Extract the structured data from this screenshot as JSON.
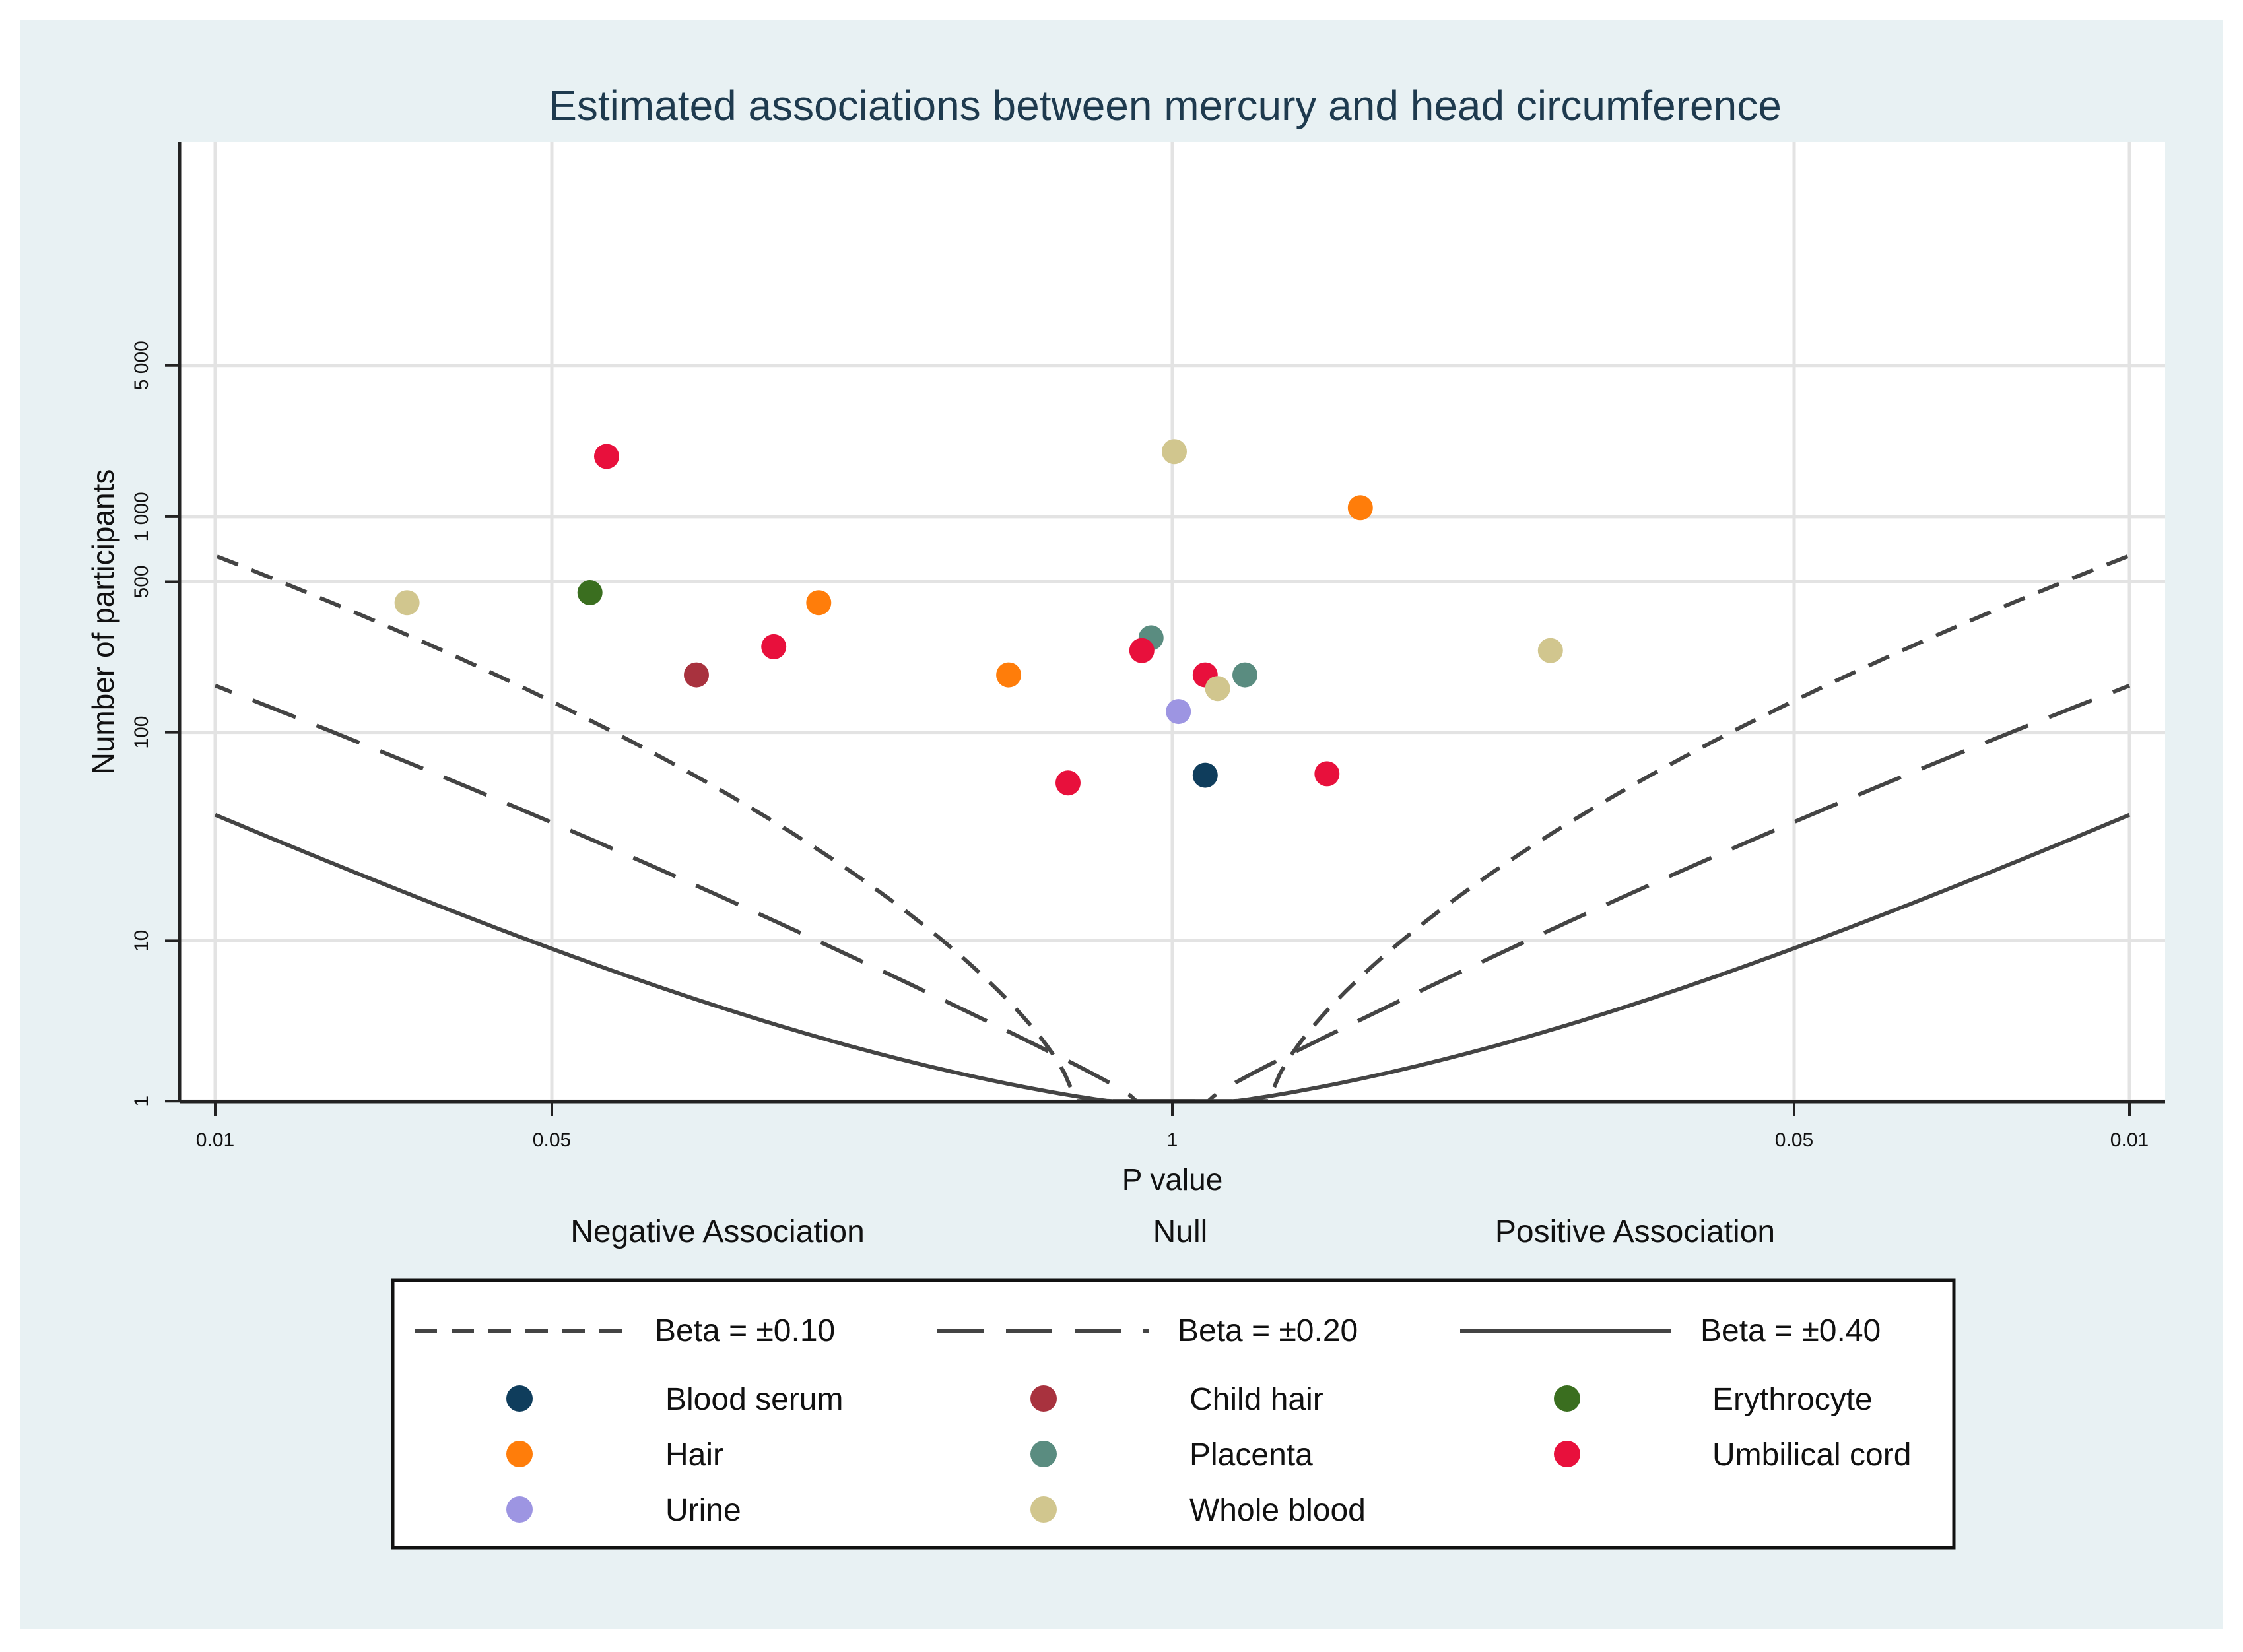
{
  "colors": {
    "background": "#ffffff",
    "outer_panel": "#e8f1f3",
    "plot_bg": "#ffffff",
    "grid": "#e3e3e3",
    "axis": "#222222",
    "title": "#1e3a4e",
    "curve": "#444444"
  },
  "chart_data": {
    "type": "scatter",
    "title": "Estimated associations between mercury and head circumference",
    "xlabel": "P value",
    "ylabel": "Number of participants",
    "x_scale": "signed p-value: negative side -> 1 (null) -> positive side",
    "x_ticks": [
      "0.01",
      "0.05",
      "1",
      "0.05",
      "0.01"
    ],
    "y_ticks": [
      "5 000",
      "1 000",
      "500",
      "100",
      "10",
      "1"
    ],
    "y_scale": "log (n + 1)",
    "direction_labels": [
      "Negative Association",
      "Null",
      "Positive Association"
    ],
    "grid": true,
    "legend": {
      "placement": "bottom",
      "lines": [
        {
          "label": "Beta = ±0.10",
          "style": "short-dash",
          "key": "b010"
        },
        {
          "label": "Beta = ±0.20",
          "style": "long-dash",
          "key": "b020"
        },
        {
          "label": "Beta = ±0.40",
          "style": "solid",
          "key": "b040"
        }
      ],
      "markers": [
        {
          "label": "Blood serum",
          "color": "#0f3d5c"
        },
        {
          "label": "Child hair",
          "color": "#a8323e"
        },
        {
          "label": "Erythrocyte",
          "color": "#3a6e1f"
        },
        {
          "label": "Hair",
          "color": "#ff7d0a"
        },
        {
          "label": "Placenta",
          "color": "#5a8c80"
        },
        {
          "label": "Umbilical cord",
          "color": "#e8103c"
        },
        {
          "label": "Urine",
          "color": "#9d95e2"
        },
        {
          "label": "Whole blood",
          "color": "#d1c68e"
        }
      ]
    },
    "curves": [
      {
        "beta": 0.1,
        "label": "Beta = ±0.10",
        "n_at_p001": 660
      },
      {
        "beta": 0.2,
        "label": "Beta = ±0.20",
        "n_at_p001": 165
      },
      {
        "beta": 0.4,
        "label": "Beta = ±0.40",
        "n_at_p001": 41
      }
    ],
    "series": [
      {
        "name": "Blood serum",
        "points": [
          {
            "side": "positive",
            "p": 0.85,
            "n": 63
          }
        ]
      },
      {
        "name": "Child hair",
        "points": [
          {
            "side": "negative",
            "p": 0.1,
            "n": 185
          }
        ]
      },
      {
        "name": "Erythrocyte",
        "points": [
          {
            "side": "negative",
            "p": 0.06,
            "n": 445
          }
        ]
      },
      {
        "name": "Hair",
        "points": [
          {
            "side": "negative",
            "p": 0.18,
            "n": 400
          },
          {
            "side": "negative",
            "p": 0.45,
            "n": 185
          },
          {
            "side": "positive",
            "p": 0.4,
            "n": 1100
          }
        ]
      },
      {
        "name": "Placenta",
        "points": [
          {
            "side": "negative",
            "p": 0.9,
            "n": 275
          },
          {
            "side": "positive",
            "p": 0.7,
            "n": 185
          }
        ]
      },
      {
        "name": "Umbilical cord",
        "points": [
          {
            "side": "negative",
            "p": 0.065,
            "n": 1900
          },
          {
            "side": "negative",
            "p": 0.145,
            "n": 250
          },
          {
            "side": "negative",
            "p": 0.6,
            "n": 58
          },
          {
            "side": "negative",
            "p": 0.86,
            "n": 240
          },
          {
            "side": "positive",
            "p": 0.85,
            "n": 185
          },
          {
            "side": "positive",
            "p": 0.47,
            "n": 64
          }
        ]
      },
      {
        "name": "Urine",
        "points": [
          {
            "side": "positive",
            "p": 0.97,
            "n": 125
          }
        ]
      },
      {
        "name": "Whole blood",
        "points": [
          {
            "side": "negative",
            "p": 0.025,
            "n": 400
          },
          {
            "side": "positive",
            "p": 0.99,
            "n": 2000
          },
          {
            "side": "positive",
            "p": 0.8,
            "n": 160
          },
          {
            "side": "positive",
            "p": 0.16,
            "n": 240
          }
        ]
      }
    ]
  }
}
